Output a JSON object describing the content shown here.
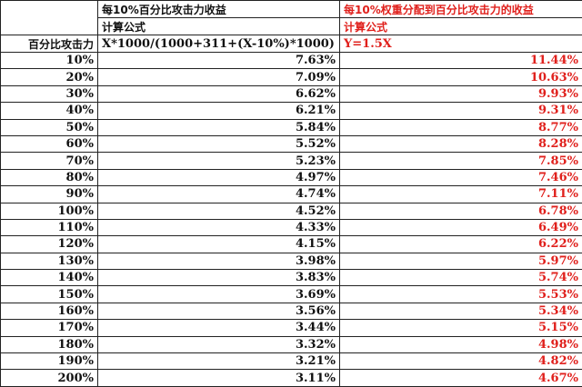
{
  "header": {
    "col2_title": "每10%百分比攻击力收益",
    "col3_title": "每10%权重分配到百分比攻击力的收益",
    "col2_formula_label": "计算公式",
    "col3_formula_label": "计算公式",
    "col1_label": "百分比攻击力",
    "col2_formula": "X*1000/(1000+311+(X-10%)*1000)",
    "col3_formula": "Y=1.5X"
  },
  "colors": {
    "red": "#e0201c"
  },
  "rows": [
    {
      "pct": "10%",
      "gain": "7.63%",
      "weighted": "11.44%"
    },
    {
      "pct": "20%",
      "gain": "7.09%",
      "weighted": "10.63%"
    },
    {
      "pct": "30%",
      "gain": "6.62%",
      "weighted": "9.93%"
    },
    {
      "pct": "40%",
      "gain": "6.21%",
      "weighted": "9.31%"
    },
    {
      "pct": "50%",
      "gain": "5.84%",
      "weighted": "8.77%"
    },
    {
      "pct": "60%",
      "gain": "5.52%",
      "weighted": "8.28%"
    },
    {
      "pct": "70%",
      "gain": "5.23%",
      "weighted": "7.85%"
    },
    {
      "pct": "80%",
      "gain": "4.97%",
      "weighted": "7.46%"
    },
    {
      "pct": "90%",
      "gain": "4.74%",
      "weighted": "7.11%"
    },
    {
      "pct": "100%",
      "gain": "4.52%",
      "weighted": "6.78%"
    },
    {
      "pct": "110%",
      "gain": "4.33%",
      "weighted": "6.49%"
    },
    {
      "pct": "120%",
      "gain": "4.15%",
      "weighted": "6.22%"
    },
    {
      "pct": "130%",
      "gain": "3.98%",
      "weighted": "5.97%"
    },
    {
      "pct": "140%",
      "gain": "3.83%",
      "weighted": "5.74%"
    },
    {
      "pct": "150%",
      "gain": "3.69%",
      "weighted": "5.53%"
    },
    {
      "pct": "160%",
      "gain": "3.56%",
      "weighted": "5.34%"
    },
    {
      "pct": "170%",
      "gain": "3.44%",
      "weighted": "5.15%"
    },
    {
      "pct": "180%",
      "gain": "3.32%",
      "weighted": "4.98%"
    },
    {
      "pct": "190%",
      "gain": "3.21%",
      "weighted": "4.82%"
    },
    {
      "pct": "200%",
      "gain": "3.11%",
      "weighted": "4.67%"
    }
  ]
}
